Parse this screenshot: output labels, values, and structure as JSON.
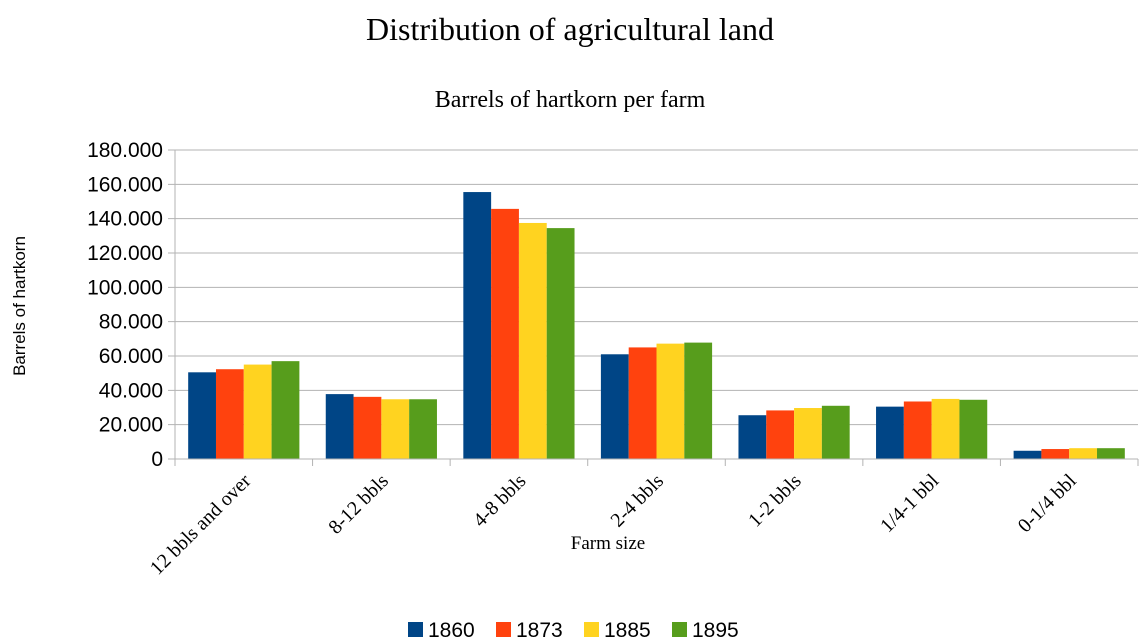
{
  "chart_data": {
    "type": "bar",
    "title": "Distribution of agricultural land",
    "subtitle": "Barrels of hartkorn per farm",
    "xlabel": "Farm size",
    "ylabel": "Barrels of hartkorn",
    "ylim": [
      0,
      180000
    ],
    "yticks": [
      "0",
      "20.000",
      "40.000",
      "60.000",
      "80.000",
      "100.000",
      "120.000",
      "140.000",
      "160.000",
      "180.000"
    ],
    "grid": true,
    "legend_position": "bottom",
    "categories": [
      "12 bbls and over",
      "8-12 bbls",
      "4-8 bbls",
      "2-4 bbls",
      "1-2 bbls",
      "1/4-1 bbl",
      "0-1/4 bbl"
    ],
    "series": [
      {
        "name": "1860",
        "color": "#004586",
        "values": [
          50500,
          37800,
          155500,
          61000,
          25500,
          30500,
          4800
        ]
      },
      {
        "name": "1873",
        "color": "#ff420e",
        "values": [
          52300,
          36200,
          145700,
          65000,
          28300,
          33500,
          5800
        ]
      },
      {
        "name": "1885",
        "color": "#ffd320",
        "values": [
          55000,
          34800,
          137500,
          67200,
          29700,
          35000,
          6300
        ]
      },
      {
        "name": "1895",
        "color": "#579d1c",
        "values": [
          57000,
          34800,
          134500,
          67800,
          31000,
          34500,
          6300
        ]
      }
    ]
  }
}
